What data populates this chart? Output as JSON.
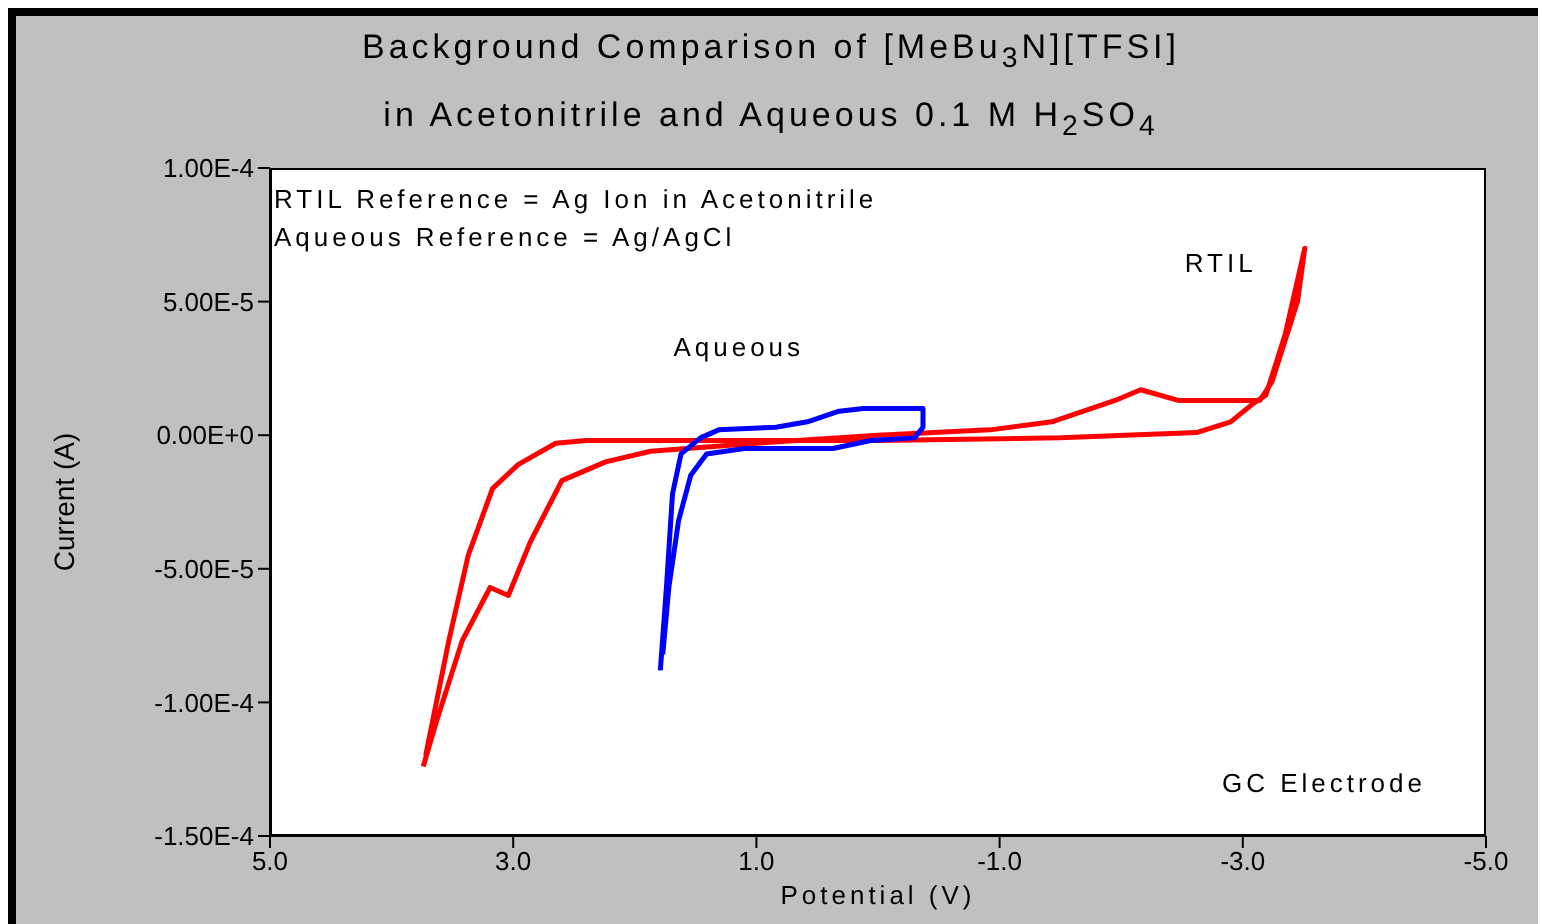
{
  "chart_data": {
    "type": "line",
    "title": "Background Comparison of [MeBu$_{3}$N][TFSI]",
    "subtitle": "in Acetonitrile and Aqueous 0.1 M H$_{2}$SO$_{4}$",
    "xlabel": "Potential (V)",
    "ylabel": "Current (A)",
    "annotations": [
      "RTIL Reference = Ag Ion in Acetonitrile",
      "Aqueous Reference = Ag/AgCl",
      "GC Electrode"
    ],
    "xlim": [
      5,
      -5
    ],
    "xticks": [
      {
        "value": 5,
        "label": "5.0"
      },
      {
        "value": 3,
        "label": "3.0"
      },
      {
        "value": 1,
        "label": "1.0"
      },
      {
        "value": -1,
        "label": "-1.0"
      },
      {
        "value": -3,
        "label": "-3.0"
      },
      {
        "value": -5,
        "label": "-5.0"
      }
    ],
    "ylim": [
      -0.00015,
      0.0001
    ],
    "yticks": [
      {
        "value": 0.0001,
        "label": "1.00E-4"
      },
      {
        "value": 5e-05,
        "label": "5.00E-5"
      },
      {
        "value": 0,
        "label": "0.00E+0"
      },
      {
        "value": -5e-05,
        "label": "-5.00E-5"
      },
      {
        "value": -0.0001,
        "label": "-1.00E-4"
      },
      {
        "value": -0.00015,
        "label": "-1.50E-4"
      }
    ],
    "marker": "none",
    "line_style": "solid",
    "series": [
      {
        "name": "RTIL",
        "color": "#ff0000",
        "x": [
          3.74,
          3.63,
          3.42,
          3.19,
          3.04,
          2.86,
          2.6,
          2.24,
          1.87,
          1.0,
          0,
          -0.92,
          -1.43,
          -1.95,
          -2.16,
          -2.47,
          -2.83,
          -3.14,
          -3.24,
          -3.45,
          -3.51,
          -3.35,
          -3.19,
          -3.09,
          -2.9,
          -2.62,
          -1.5,
          0,
          1.5,
          2.4,
          2.65,
          2.96,
          3.17,
          3.37,
          3.53,
          3.72
        ],
        "values": [
          -0.000124,
          -0.000107,
          -7.7e-05,
          -5.7e-05,
          -6e-05,
          -4e-05,
          -1.7e-05,
          -1e-05,
          -6e-06,
          -3e-06,
          0,
          2e-06,
          5e-06,
          1.3e-05,
          1.7e-05,
          1.3e-05,
          1.3e-05,
          1.3e-05,
          2e-05,
          5e-05,
          7e-05,
          3.8e-05,
          1.5e-05,
          1.2e-05,
          5e-06,
          1e-06,
          -1e-06,
          -2e-06,
          -2e-06,
          -2e-06,
          -3e-06,
          -1.1e-05,
          -2e-05,
          -4.5e-05,
          -7.7e-05,
          -0.00012
        ]
      },
      {
        "name": "Aqueous",
        "color": "#0000ff",
        "x": [
          1.79,
          1.74,
          1.69,
          1.62,
          1.46,
          1.31,
          0.84,
          0.58,
          0.32,
          0.12,
          -0.37,
          -0.37,
          -0.3,
          0.06,
          0.37,
          1.1,
          1.41,
          1.54,
          1.64,
          1.72,
          1.77
        ],
        "values": [
          -8.8e-05,
          -5.7e-05,
          -2.2e-05,
          -7e-06,
          -1e-06,
          2e-06,
          3e-06,
          5e-06,
          9e-06,
          1e-05,
          1e-05,
          3e-06,
          -1e-06,
          -2e-06,
          -5e-06,
          -5e-06,
          -7e-06,
          -1.5e-05,
          -3.2e-05,
          -5.7e-05,
          -8.2e-05
        ]
      }
    ]
  }
}
